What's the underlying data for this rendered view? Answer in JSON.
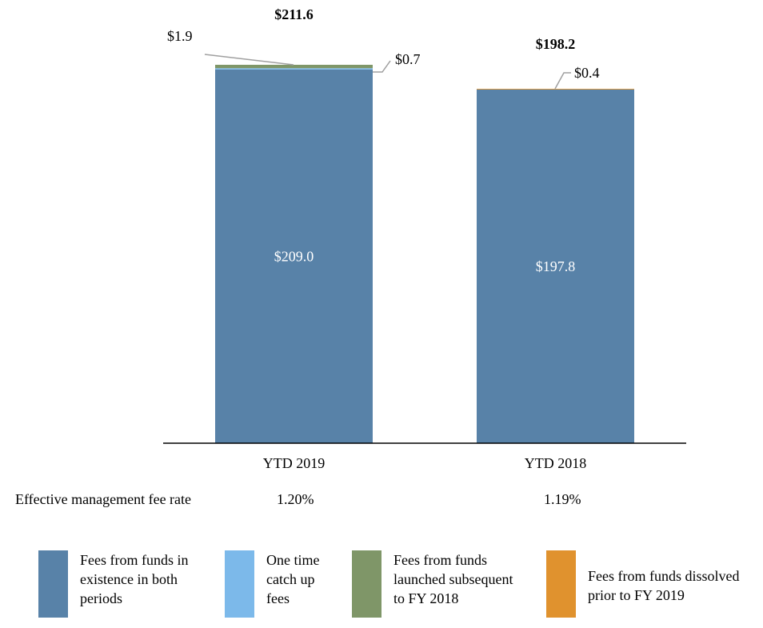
{
  "chart_data": {
    "type": "bar",
    "stacked": true,
    "categories": [
      "YTD 2019",
      "YTD 2018"
    ],
    "series": [
      {
        "name": "Fees from funds in existence in both periods",
        "color": "#5882a8",
        "values": [
          209.0,
          197.8
        ],
        "labels": [
          "$209.0",
          "$197.8"
        ]
      },
      {
        "name": "One time catch up fees",
        "color": "#7cb9ea",
        "values": [
          0.7,
          0
        ],
        "labels": [
          "$0.7",
          ""
        ]
      },
      {
        "name": "Fees from funds launched subsequent to FY 2018",
        "color": "#7f9668",
        "values": [
          1.9,
          0
        ],
        "labels": [
          "$1.9",
          ""
        ]
      },
      {
        "name": "Fees from funds dissolved prior to FY 2019",
        "color": "#e0922e",
        "values": [
          0,
          0.4
        ],
        "labels": [
          "",
          "$0.4"
        ]
      }
    ],
    "totals": [
      "$211.6",
      "$198.2"
    ],
    "ylim": [
      0,
      211.6
    ],
    "title": "",
    "xlabel": "",
    "ylabel": "",
    "grid": false
  },
  "rate_row": {
    "label": "Effective management fee rate",
    "values": [
      "1.20%",
      "1.19%"
    ]
  },
  "legend": {
    "items": [
      {
        "lines": [
          "Fees from funds in",
          "existence in both",
          "periods"
        ],
        "color": "#5882a8"
      },
      {
        "lines": [
          "One time",
          "catch up",
          "fees"
        ],
        "color": "#7cb9ea"
      },
      {
        "lines": [
          "Fees from funds",
          "launched subsequent",
          "to FY 2018"
        ],
        "color": "#7f9668"
      },
      {
        "lines": [
          "Fees from funds dissolved",
          "prior to FY 2019"
        ],
        "color": "#e0922e"
      }
    ]
  }
}
